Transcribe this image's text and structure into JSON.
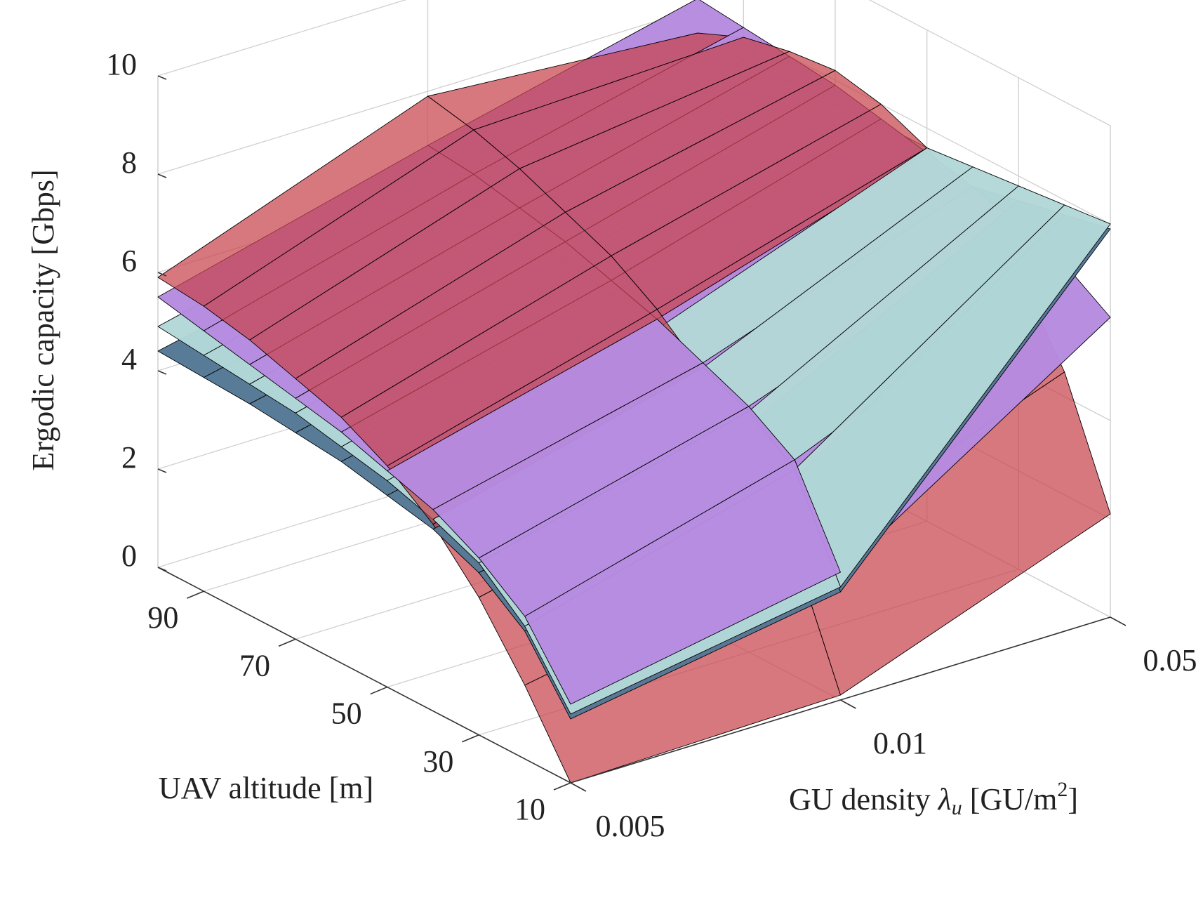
{
  "chart_data": {
    "type": "surface3d",
    "zlabel": "Ergodic capacity [Gbps]",
    "ylabel": "UAV altitude [m]",
    "xlabel": [
      "GU density ",
      "λ",
      "u",
      " [GU/m",
      "2",
      "]"
    ],
    "categories": [
      0.005,
      0.01,
      0.05
    ],
    "y": [
      10,
      20,
      30,
      40,
      50,
      60,
      70,
      80,
      90,
      100
    ],
    "ylim": [
      10,
      100
    ],
    "yticks": [
      10,
      30,
      50,
      70,
      90
    ],
    "zlim": [
      0,
      10
    ],
    "zticks": [
      0,
      2,
      4,
      6,
      8,
      10
    ],
    "grid": true,
    "series": [
      {
        "color": "#c8424c",
        "opacity": 0.72,
        "values": [
          [
            0.0,
            0.1,
            2.1
          ],
          [
            1.5,
            2.5,
            4.5
          ],
          [
            2.8,
            4.0,
            6.0
          ],
          [
            3.8,
            5.2,
            7.0
          ],
          [
            4.5,
            6.0,
            7.6
          ],
          [
            5.0,
            6.6,
            8.0
          ],
          [
            5.3,
            7.0,
            8.2
          ],
          [
            5.6,
            7.4,
            8.1
          ],
          [
            5.8,
            7.7,
            7.9
          ],
          [
            5.9,
            7.9,
            7.5
          ]
        ]
      },
      {
        "color": "#b68ae0",
        "opacity": 0.97,
        "values": [
          [
            1.6,
            2.6,
            6.1
          ],
          [
            2.9,
            4.4,
            6.7
          ],
          [
            3.6,
            5.0,
            7.0
          ],
          [
            4.1,
            5.4,
            7.3
          ],
          [
            4.4,
            5.8,
            7.5
          ],
          [
            4.7,
            6.1,
            7.7
          ],
          [
            4.9,
            6.4,
            7.9
          ],
          [
            5.1,
            6.6,
            8.0
          ],
          [
            5.3,
            6.8,
            8.1
          ],
          [
            5.5,
            6.9,
            8.2
          ]
        ]
      },
      {
        "color": "#b3d8d8",
        "opacity": 0.97,
        "values": [
          [
            1.4,
            2.3,
            8.0
          ],
          [
            2.7,
            4.2,
            7.9
          ],
          [
            3.5,
            4.9,
            7.8
          ],
          [
            3.9,
            5.3,
            7.7
          ],
          [
            4.2,
            5.6,
            7.6
          ],
          [
            4.4,
            5.8,
            7.6
          ],
          [
            4.6,
            6.0,
            7.5
          ],
          [
            4.7,
            6.1,
            7.5
          ],
          [
            4.8,
            6.15,
            7.45
          ],
          [
            4.9,
            6.2,
            7.4
          ]
        ]
      },
      {
        "color": "#557895",
        "opacity": 0.98,
        "values": [
          [
            1.3,
            2.2,
            7.9
          ],
          [
            2.6,
            4.0,
            7.7
          ],
          [
            3.3,
            4.6,
            7.5
          ],
          [
            3.7,
            4.9,
            7.3
          ],
          [
            3.9,
            5.1,
            7.1
          ],
          [
            4.1,
            5.3,
            7.0
          ],
          [
            4.2,
            5.4,
            6.9
          ],
          [
            4.3,
            5.5,
            6.8
          ],
          [
            4.35,
            5.55,
            6.7
          ],
          [
            4.4,
            5.6,
            6.6
          ]
        ]
      }
    ]
  }
}
